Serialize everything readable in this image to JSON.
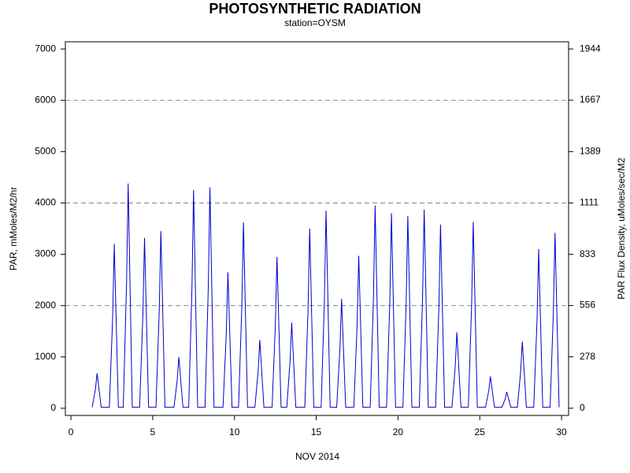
{
  "chart_data": {
    "type": "line",
    "title": "PHOTOSYNTHETIC RADIATION",
    "subtitle": "station=OYSM",
    "xlabel": "NOV 2014",
    "ylabel": "PAR, mMoles/M2/hr",
    "y2label": "PAR Flux Density, uMoles/sec/M2",
    "color": "#0000cc",
    "grid_color": "#888888",
    "grid_lines": [
      2000,
      4000,
      6000
    ],
    "xlim": [
      -0.34,
      30.43
    ],
    "xticks": [
      0,
      5,
      10,
      15,
      20,
      25,
      30
    ],
    "ylim": [
      -140,
      7140
    ],
    "yticks": [
      0,
      1000,
      2000,
      3000,
      4000,
      5000,
      6000,
      7000
    ],
    "y2lim": [
      -39,
      1983
    ],
    "y2ticks": [
      0,
      278,
      556,
      833,
      1111,
      1389,
      1667,
      1944
    ],
    "x": [
      1.3,
      1.5,
      1.6,
      1.85,
      2.35,
      2.55,
      2.65,
      2.9,
      3.2,
      3.4,
      3.5,
      3.75,
      4.2,
      4.4,
      4.5,
      4.75,
      5.2,
      5.4,
      5.5,
      5.75,
      6.3,
      6.5,
      6.6,
      6.85,
      7.2,
      7.4,
      7.5,
      7.75,
      8.2,
      8.4,
      8.5,
      8.75,
      9.3,
      9.5,
      9.6,
      9.85,
      10.25,
      10.45,
      10.55,
      10.8,
      11.25,
      11.45,
      11.55,
      11.8,
      12.3,
      12.5,
      12.6,
      12.85,
      13.2,
      13.4,
      13.5,
      13.75,
      14.3,
      14.5,
      14.6,
      14.85,
      15.3,
      15.5,
      15.6,
      15.85,
      16.25,
      16.45,
      16.55,
      16.8,
      17.3,
      17.5,
      17.6,
      17.85,
      18.3,
      18.5,
      18.6,
      18.85,
      19.3,
      19.5,
      19.6,
      19.85,
      20.3,
      20.5,
      20.6,
      20.85,
      21.3,
      21.5,
      21.6,
      21.85,
      22.3,
      22.5,
      22.6,
      22.85,
      23.3,
      23.5,
      23.6,
      23.85,
      24.3,
      24.5,
      24.6,
      24.85,
      25.35,
      25.55,
      25.65,
      25.9,
      26.35,
      26.55,
      26.65,
      26.9,
      27.3,
      27.5,
      27.6,
      27.85,
      28.3,
      28.5,
      28.6,
      28.85,
      29.3,
      29.5,
      29.6,
      29.85
    ],
    "values": [
      20,
      374,
      680,
      20,
      20,
      1760,
      3200,
      20,
      20,
      2409,
      4380,
      20,
      20,
      1826,
      3320,
      20,
      20,
      1898,
      3450,
      20,
      20,
      550,
      1000,
      20,
      20,
      2338,
      4250,
      20,
      20,
      2365,
      4300,
      20,
      20,
      1458,
      2650,
      20,
      20,
      1991,
      3620,
      20,
      20,
      732,
      1330,
      20,
      20,
      1623,
      2950,
      20,
      20,
      919,
      1670,
      20,
      20,
      1925,
      3500,
      20,
      20,
      2118,
      3850,
      20,
      20,
      1172,
      2130,
      20,
      20,
      1634,
      2970,
      20,
      20,
      2173,
      3950,
      20,
      20,
      2090,
      3800,
      20,
      20,
      2063,
      3750,
      20,
      20,
      2129,
      3870,
      20,
      20,
      1969,
      3580,
      20,
      20,
      814,
      1480,
      20,
      20,
      1997,
      3630,
      20,
      20,
      341,
      620,
      20,
      20,
      176,
      320,
      20,
      20,
      715,
      1300,
      20,
      20,
      1705,
      3100,
      20,
      20,
      1881,
      3420,
      20
    ]
  }
}
